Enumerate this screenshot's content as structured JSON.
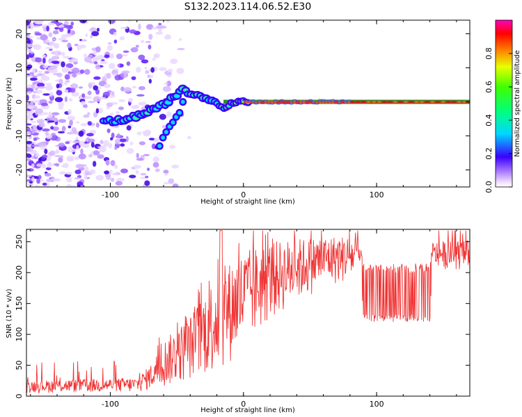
{
  "title": "S132.2023.114.06.52.E30",
  "colorbar": {
    "label": "Normalized spectral amplitude",
    "ticks": [
      "0.0",
      "0.2",
      "0.4",
      "0.6",
      "0.8"
    ]
  },
  "chart_data": [
    {
      "type": "heatmap",
      "title": "",
      "xlabel": "Height of straight line (km)",
      "ylabel": "Frequency (Hz)",
      "xlim": [
        -163,
        170
      ],
      "ylim": [
        -25,
        24
      ],
      "xticks": [
        "-100",
        "0",
        "100"
      ],
      "yticks": [
        "-20",
        "-10",
        "0",
        "10",
        "20"
      ],
      "ridge": {
        "x": [
          -105,
          -90,
          -75,
          -65,
          -55,
          -45,
          -38,
          -30,
          -24,
          -18,
          -14,
          -10,
          -5,
          0,
          20,
          60,
          100,
          170
        ],
        "y": [
          -5.5,
          -5.5,
          -3.5,
          -2,
          0.5,
          4,
          2,
          1.5,
          0.5,
          -1.5,
          -2,
          -0.5,
          0,
          0,
          0,
          0,
          0,
          0
        ]
      },
      "branch": {
        "x": [
          -63,
          -58,
          -53,
          -48,
          -45
        ],
        "y": [
          -12.5,
          -9,
          -6,
          -3,
          0
        ]
      },
      "noise_extent_km": -60,
      "colormap": "rainbow"
    },
    {
      "type": "line",
      "title": "",
      "xlabel": "Height of straight line (km)",
      "ylabel": "SNR (10 * v/v)",
      "xlim": [
        -163,
        170
      ],
      "ylim": [
        0,
        270
      ],
      "xticks": [
        "-100",
        "0",
        "100"
      ],
      "yticks": [
        "0",
        "50",
        "100",
        "150",
        "200",
        "250"
      ],
      "color": "#f03434",
      "envelope": {
        "x": [
          -163,
          -80,
          -70,
          -60,
          -40,
          -20,
          0,
          20,
          40,
          60,
          80,
          88,
          90,
          140,
          142,
          170
        ],
        "low": [
          5,
          5,
          10,
          12,
          25,
          35,
          70,
          120,
          150,
          175,
          185,
          190,
          120,
          120,
          205,
          205
        ],
        "high": [
          25,
          30,
          50,
          90,
          130,
          200,
          235,
          250,
          255,
          260,
          260,
          255,
          215,
          215,
          250,
          252
        ]
      },
      "spike_max": 268
    }
  ]
}
